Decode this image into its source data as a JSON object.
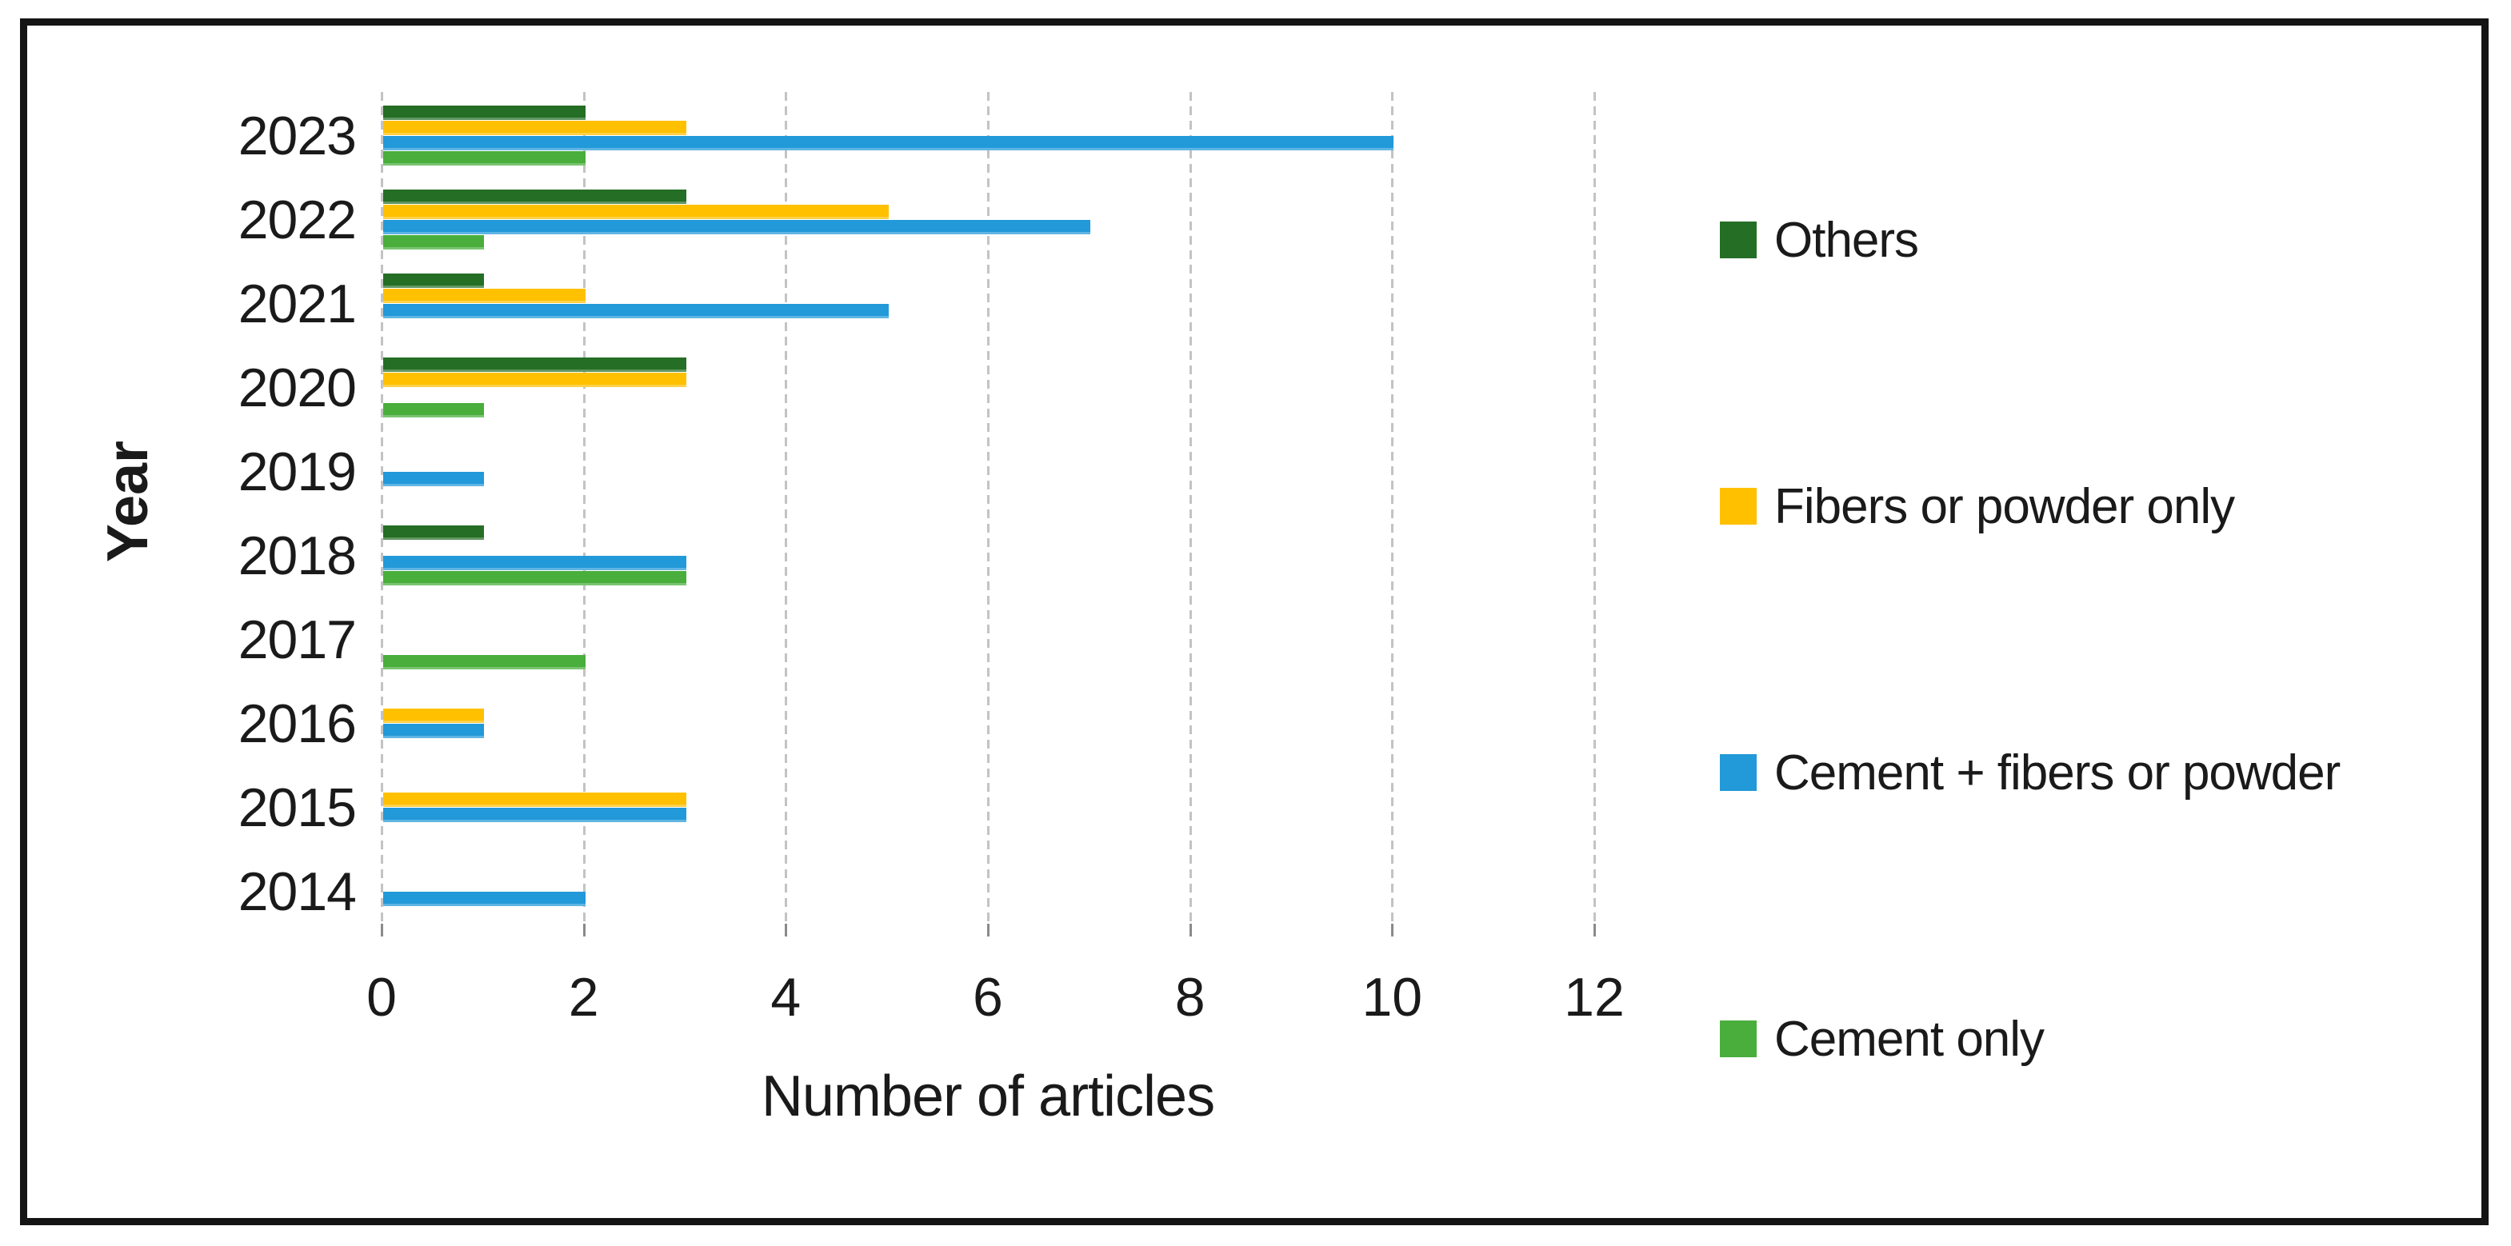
{
  "chart_data": {
    "type": "bar",
    "orientation": "horizontal",
    "title": "",
    "xlabel": "Number of articles",
    "ylabel": "Year",
    "xlim": [
      0,
      12
    ],
    "xticks": [
      0,
      2,
      4,
      6,
      8,
      10,
      12
    ],
    "grid": "vertical-dashed",
    "legend_position": "right",
    "categories": [
      "2023",
      "2022",
      "2021",
      "2020",
      "2019",
      "2018",
      "2017",
      "2016",
      "2015",
      "2014"
    ],
    "series": [
      {
        "name": "Others",
        "color": "#256E25",
        "values": [
          2,
          3,
          1,
          3,
          0,
          1,
          0,
          0,
          0,
          0
        ]
      },
      {
        "name": "Fibers or powder only",
        "color": "#FFC000",
        "values": [
          3,
          5,
          2,
          3,
          0,
          0,
          0,
          1,
          3,
          0
        ]
      },
      {
        "name": "Cement + fibers or powder",
        "color": "#2299D8",
        "values": [
          10,
          7,
          5,
          0,
          1,
          3,
          0,
          1,
          3,
          2
        ]
      },
      {
        "name": "Cement only",
        "color": "#49AE3C",
        "values": [
          2,
          1,
          0,
          1,
          0,
          3,
          2,
          0,
          0,
          0
        ]
      }
    ],
    "colors": {
      "gridline": "#c3c3c3",
      "tick": "#8a8a8a",
      "text": "#1a1a1a",
      "frame_border": "#141414"
    }
  }
}
